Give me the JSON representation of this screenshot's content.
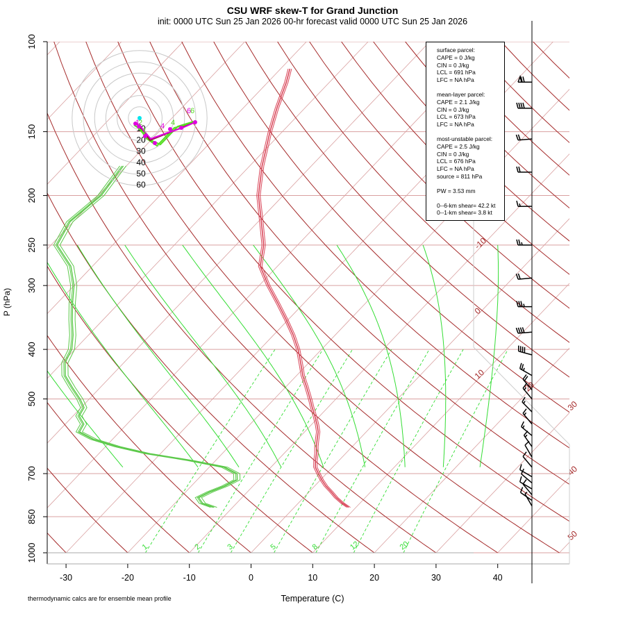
{
  "page": {
    "title": "CSU WRF skew-T for Grand Junction",
    "subtitle": "init: 0000 UTC Sun 25 Jan 2026     00-hr forecast valid 0000 UTC Sun 25 Jan 2026",
    "footnote": "thermodynamic calcs are for ensemble mean profile"
  },
  "stats": {
    "surface": [
      "surface parcel:",
      "CAPE = 0 J/kg",
      "CIN = 0 J/kg",
      "LCL = 691 hPa",
      "LFC = NA hPa"
    ],
    "mean_layer": [
      "mean-layer parcel:",
      "CAPE = 2.1 J/kg",
      "CIN = 0 J/kg",
      "LCL = 673 hPa",
      "LFC = NA hPa"
    ],
    "most_unstable": [
      "most-unstable parcel:",
      "CAPE = 2.5 J/kg",
      "CIN = 0 J/kg",
      "LCL = 676 hPa",
      "LFC = NA hPa",
      "source = 811 hPa"
    ],
    "pw": "PW =  3.53 mm",
    "shear": [
      "0--6-km shear= 42.2 kt",
      "0--1-km shear= 3.8 kt"
    ]
  },
  "colors": {
    "temperature": "#d9475a",
    "dewpoint": "#5cc94a",
    "dry_adiabat": "#a52a2a",
    "moist_adiabat": "#33dd33",
    "mixing_ratio": "#33dd33",
    "isotherm": "#d9a0a0",
    "isobar": "#d9a0a0",
    "hodo_grey": "#c8c8c8",
    "hodo_magenta": "#e000e0",
    "hodo_green": "#55dd22",
    "hodo_dark": "#8b1a3a",
    "cyan": "#00e5ee"
  },
  "chart_data": {
    "type": "line",
    "chart_kind": "skew-T log-P diagram",
    "xlabel": "Temperature (C)",
    "ylabel": "P (hPa)",
    "xlim": [
      -33,
      45
    ],
    "ylim": [
      1000,
      100
    ],
    "y_scale": "log",
    "x_ticks": [
      -30,
      -20,
      -10,
      0,
      10,
      20,
      30,
      40
    ],
    "x_tick_labels": [
      "-30",
      "-20",
      "-10",
      "0",
      "10",
      "20",
      "30",
      "40"
    ],
    "y_ticks": [
      100,
      150,
      200,
      250,
      300,
      400,
      500,
      700,
      850,
      1000
    ],
    "y_tick_labels": [
      "100",
      "150",
      "200",
      "250",
      "300",
      "400",
      "500",
      "700",
      "850",
      "1000"
    ],
    "isotherm_labels": [
      {
        "temp": -10,
        "text": "-10"
      },
      {
        "temp": 0,
        "text": "0"
      },
      {
        "temp": 10,
        "text": "10"
      },
      {
        "temp": 20,
        "text": "20"
      },
      {
        "temp": 30,
        "text": "30"
      },
      {
        "temp": 40,
        "text": "40"
      },
      {
        "temp": 50,
        "text": "50"
      }
    ],
    "mixing_ratio_labels": [
      "1",
      "2",
      "3",
      "5",
      "8",
      "12",
      "20"
    ],
    "mixing_ratio_values": [
      1,
      2,
      3,
      5,
      8,
      12,
      20
    ],
    "moist_adiabat_bases": [
      -10,
      0,
      5,
      10,
      15,
      20,
      25,
      30,
      35
    ],
    "dry_adiabat_thetas": [
      -50,
      -40,
      -30,
      -20,
      -10,
      0,
      10,
      20,
      30,
      40,
      50,
      60,
      70,
      80,
      90,
      100,
      110,
      120,
      130,
      140,
      150,
      160,
      170,
      180,
      190
    ],
    "temperature_profile": {
      "name": "temperature",
      "p": [
        815,
        800,
        780,
        760,
        740,
        720,
        700,
        680,
        660,
        640,
        620,
        600,
        580,
        560,
        540,
        520,
        500,
        475,
        450,
        425,
        400,
        375,
        350,
        325,
        300,
        275,
        250,
        225,
        200,
        175,
        150,
        135,
        120,
        113
      ],
      "t": [
        8.8,
        7.2,
        5.3,
        3.6,
        1.8,
        0.2,
        -1.3,
        -2.8,
        -3.8,
        -4.7,
        -5.8,
        -6.8,
        -7.8,
        -9.2,
        -10.8,
        -12.5,
        -14.2,
        -16.5,
        -19.0,
        -21.3,
        -23.8,
        -26.8,
        -30.3,
        -34.2,
        -38.5,
        -42.8,
        -45.5,
        -49.5,
        -54.0,
        -58.0,
        -62.0,
        -64.5,
        -67.0,
        -68.5
      ]
    },
    "dewpoint_profile": {
      "name": "dewpoint",
      "p": [
        815,
        800,
        780,
        760,
        740,
        720,
        700,
        680,
        660,
        640,
        620,
        600,
        580,
        560,
        540,
        520,
        500,
        475,
        450,
        425,
        400,
        375,
        350,
        325,
        300,
        275,
        250,
        225,
        200,
        175
      ],
      "td": [
        -13.0,
        -15.5,
        -17.0,
        -16.0,
        -14.5,
        -13.5,
        -14.5,
        -17.5,
        -24.0,
        -32.0,
        -38.0,
        -43.0,
        -46.5,
        -47.0,
        -49.0,
        -49.5,
        -51.5,
        -54.5,
        -57.5,
        -59.5,
        -60.5,
        -62.5,
        -65.0,
        -67.5,
        -70.0,
        -73.5,
        -79.0,
        -80.5,
        -79.5,
        -80.5
      ]
    },
    "wind_barbs": [
      {
        "p": 120,
        "speed_kt": 70,
        "dir_deg": 270
      },
      {
        "p": 135,
        "speed_kt": 40,
        "dir_deg": 270
      },
      {
        "p": 155,
        "speed_kt": 20,
        "dir_deg": 265
      },
      {
        "p": 180,
        "speed_kt": 20,
        "dir_deg": 270
      },
      {
        "p": 210,
        "speed_kt": 15,
        "dir_deg": 270
      },
      {
        "p": 250,
        "speed_kt": 25,
        "dir_deg": 270
      },
      {
        "p": 290,
        "speed_kt": 20,
        "dir_deg": 265
      },
      {
        "p": 330,
        "speed_kt": 35,
        "dir_deg": 270
      },
      {
        "p": 370,
        "speed_kt": 40,
        "dir_deg": 265
      },
      {
        "p": 410,
        "speed_kt": 40,
        "dir_deg": 285
      },
      {
        "p": 450,
        "speed_kt": 25,
        "dir_deg": 300
      },
      {
        "p": 480,
        "speed_kt": 20,
        "dir_deg": 320
      },
      {
        "p": 500,
        "speed_kt": 15,
        "dir_deg": 320
      },
      {
        "p": 530,
        "speed_kt": 15,
        "dir_deg": 315
      },
      {
        "p": 560,
        "speed_kt": 15,
        "dir_deg": 320
      },
      {
        "p": 590,
        "speed_kt": 15,
        "dir_deg": 310
      },
      {
        "p": 620,
        "speed_kt": 15,
        "dir_deg": 325
      },
      {
        "p": 650,
        "speed_kt": 10,
        "dir_deg": 330
      },
      {
        "p": 680,
        "speed_kt": 10,
        "dir_deg": 320
      },
      {
        "p": 710,
        "speed_kt": 10,
        "dir_deg": 300
      },
      {
        "p": 730,
        "speed_kt": 10,
        "dir_deg": 310
      },
      {
        "p": 750,
        "speed_kt": 10,
        "dir_deg": 300
      },
      {
        "p": 770,
        "speed_kt": 10,
        "dir_deg": 320
      },
      {
        "p": 790,
        "speed_kt": 10,
        "dir_deg": 305
      },
      {
        "p": 810,
        "speed_kt": 5,
        "dir_deg": 330
      }
    ],
    "hodograph": {
      "ring_labels": [
        "10",
        "20",
        "30",
        "40",
        "50",
        "60"
      ],
      "ring_speeds_kt": [
        10,
        20,
        30,
        40,
        50,
        60
      ],
      "point_labels": [
        "6",
        "6",
        "4",
        "4",
        "2",
        "1",
        "1",
        "0"
      ]
    }
  }
}
